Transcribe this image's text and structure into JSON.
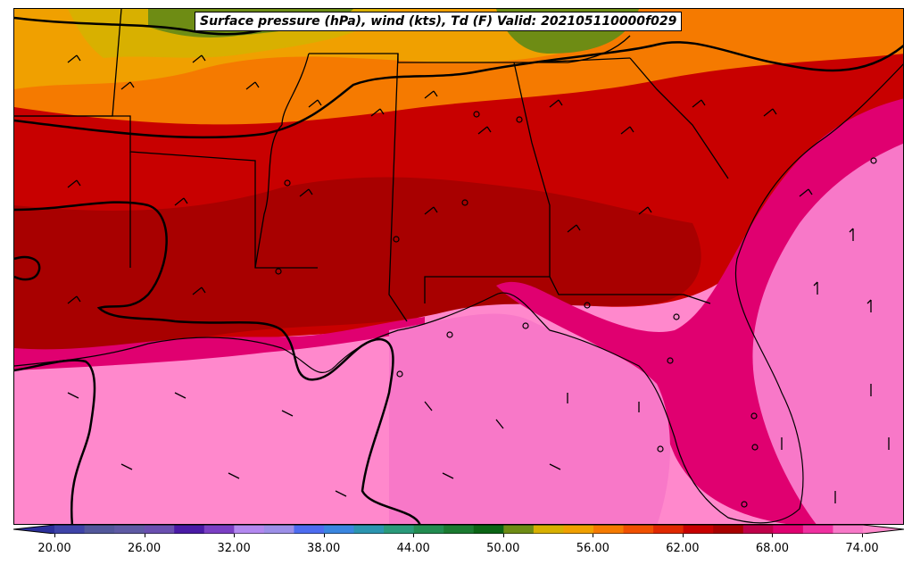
{
  "title": "Surface pressure (hPa), wind (kts), Td (F) Valid: 202105110000f029",
  "colorbar": {
    "tick_labels": [
      "20.00",
      "26.00",
      "32.00",
      "38.00",
      "44.00",
      "50.00",
      "56.00",
      "62.00",
      "68.00",
      "74.00"
    ],
    "tick_values": [
      20,
      26,
      32,
      38,
      44,
      50,
      56,
      62,
      68,
      74
    ],
    "min": 18,
    "max": 76,
    "step": 2,
    "extend": "both",
    "colors": [
      "#2b2f9b",
      "#3e43a8",
      "#52579b",
      "#5e5aa4",
      "#6a4fb0",
      "#4a1aa6",
      "#7b3fc4",
      "#b388f0",
      "#9c8fe8",
      "#4d6cf0",
      "#3a86e0",
      "#2b95b0",
      "#2a9a7a",
      "#228c50",
      "#1a7a30",
      "#0a6414",
      "#6e8c14",
      "#d8b000",
      "#f0a000",
      "#f57a00",
      "#f05000",
      "#e02800",
      "#c80000",
      "#a80000",
      "#c0004a",
      "#e00070",
      "#f030a0",
      "#f878c8",
      "#ff88cc"
    ]
  },
  "map": {
    "field": "Td (F)",
    "land_colors": {
      "warm": "#c80000",
      "hot": "#a80000",
      "orange": "#f57a00",
      "yellow": "#f0a000",
      "green": "#6e8c14",
      "magenta": "#e00070",
      "pink": "#f878c8",
      "lightpink": "#ff88cc"
    }
  }
}
